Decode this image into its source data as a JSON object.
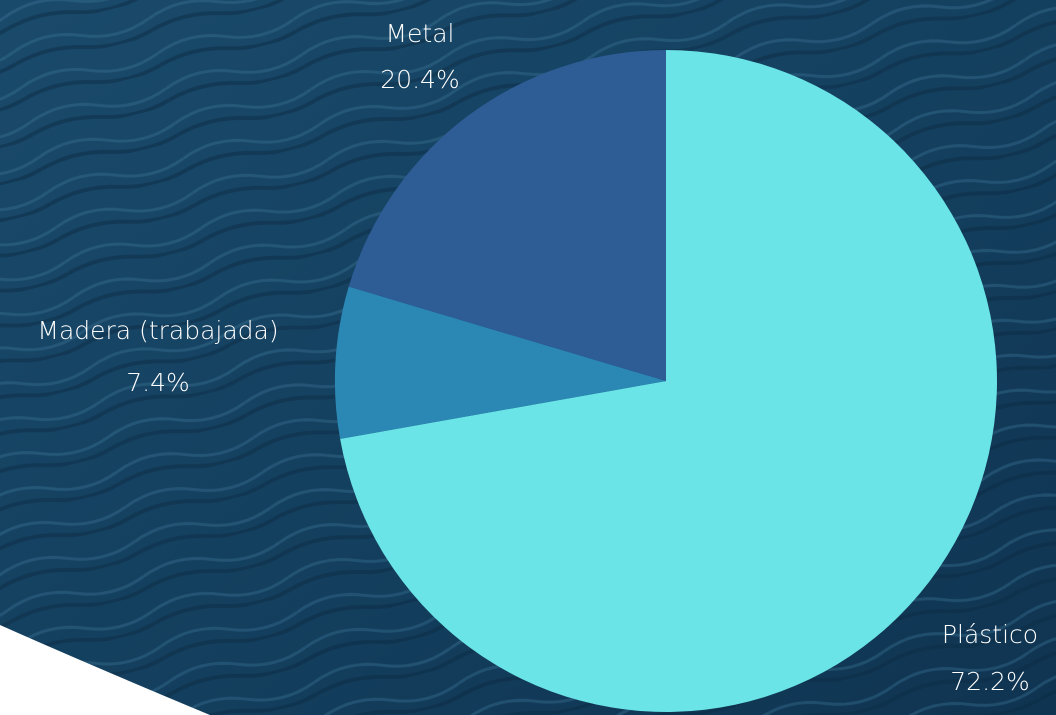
{
  "chart_data": {
    "type": "pie",
    "slices": [
      {
        "label": "Plástico",
        "value": 72.2,
        "value_label": "72.2%",
        "color": "#6ae4e6"
      },
      {
        "label": "Madera (trabajada)",
        "value": 7.4,
        "value_label": "7.4%",
        "color": "#2b88b5"
      },
      {
        "label": "Metal",
        "value": 20.4,
        "value_label": "20.4%",
        "color": "#2e5c95"
      }
    ],
    "start_angle_deg": 0,
    "direction": "clockwise",
    "legend": "none",
    "background": "ocean water photo"
  },
  "colors": {
    "background_dark": "#133a56",
    "background_light": "#2a5f80",
    "label_text": "#ffffff"
  }
}
